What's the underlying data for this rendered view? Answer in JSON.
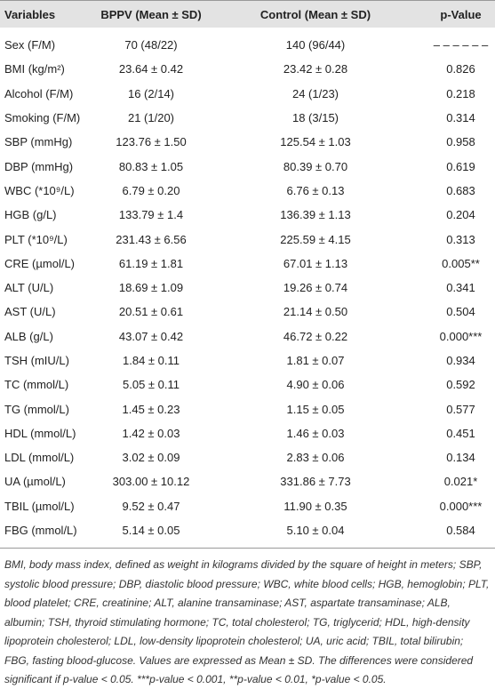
{
  "table": {
    "header": [
      "Variables",
      "BPPV (Mean ± SD)",
      "Control (Mean ± SD)",
      "p-Value"
    ],
    "rows": [
      [
        "Sex (F/M)",
        "70 (48/22)",
        "140 (96/44)",
        "– – – – – –"
      ],
      [
        "BMI (kg/m²)",
        "23.64 ± 0.42",
        "23.42 ± 0.28",
        "0.826"
      ],
      [
        "Alcohol (F/M)",
        "16 (2/14)",
        "24 (1/23)",
        "0.218"
      ],
      [
        "Smoking (F/M)",
        "21 (1/20)",
        "18 (3/15)",
        "0.314"
      ],
      [
        "SBP (mmHg)",
        "123.76 ± 1.50",
        "125.54 ± 1.03",
        "0.958"
      ],
      [
        "DBP (mmHg)",
        "80.83 ± 1.05",
        "80.39 ± 0.70",
        "0.619"
      ],
      [
        "WBC (*10⁹/L)",
        "6.79 ± 0.20",
        "6.76 ± 0.13",
        "0.683"
      ],
      [
        "HGB (g/L)",
        "133.79 ± 1.4",
        "136.39 ± 1.13",
        "0.204"
      ],
      [
        "PLT (*10⁹/L)",
        "231.43 ± 6.56",
        "225.59 ± 4.15",
        "0.313"
      ],
      [
        "CRE (µmol/L)",
        "61.19 ± 1.81",
        "67.01 ± 1.13",
        "0.005**"
      ],
      [
        "ALT (U/L)",
        "18.69 ± 1.09",
        "19.26 ± 0.74",
        "0.341"
      ],
      [
        "AST (U/L)",
        "20.51 ± 0.61",
        "21.14 ± 0.50",
        "0.504"
      ],
      [
        "ALB (g/L)",
        "43.07 ± 0.42",
        "46.72 ± 0.22",
        "0.000***"
      ],
      [
        "TSH (mIU/L)",
        "1.84 ± 0.11",
        "1.81 ± 0.07",
        "0.934"
      ],
      [
        "TC (mmol/L)",
        "5.05 ± 0.11",
        "4.90 ± 0.06",
        "0.592"
      ],
      [
        "TG (mmol/L)",
        "1.45 ± 0.23",
        "1.15 ± 0.05",
        "0.577"
      ],
      [
        "HDL (mmol/L)",
        "1.42 ± 0.03",
        "1.46 ± 0.03",
        "0.451"
      ],
      [
        "LDL (mmol/L)",
        "3.02 ± 0.09",
        "2.83 ± 0.06",
        "0.134"
      ],
      [
        "UA (µmol/L)",
        "303.00 ± 10.12",
        "331.86 ± 7.73",
        "0.021*"
      ],
      [
        "TBIL (µmol/L)",
        "9.52 ± 0.47",
        "11.90 ± 0.35",
        "0.000***"
      ],
      [
        "FBG (mmol/L)",
        "5.14 ± 0.05",
        "5.10 ± 0.04",
        "0.584"
      ]
    ]
  },
  "footnote": "BMI, body mass index, defined as weight in kilograms divided by the square of height in meters; SBP, systolic blood pressure; DBP, diastolic blood pressure; WBC, white blood cells; HGB, hemoglobin; PLT, blood platelet; CRE, creatinine; ALT, alanine transaminase; AST, aspartate transaminase; ALB, albumin; TSH, thyroid stimulating hormone; TC, total cholesterol; TG, triglycerid; HDL, high-density lipoprotein cholesterol; LDL, low-density lipoprotein cholesterol; UA, uric acid; TBIL, total bilirubin; FBG, fasting blood-glucose. Values are expressed as Mean ± SD. The differences were considered significant if p-value < 0.05. ***p-value < 0.001, **p-value < 0.01, *p-value < 0.05."
}
